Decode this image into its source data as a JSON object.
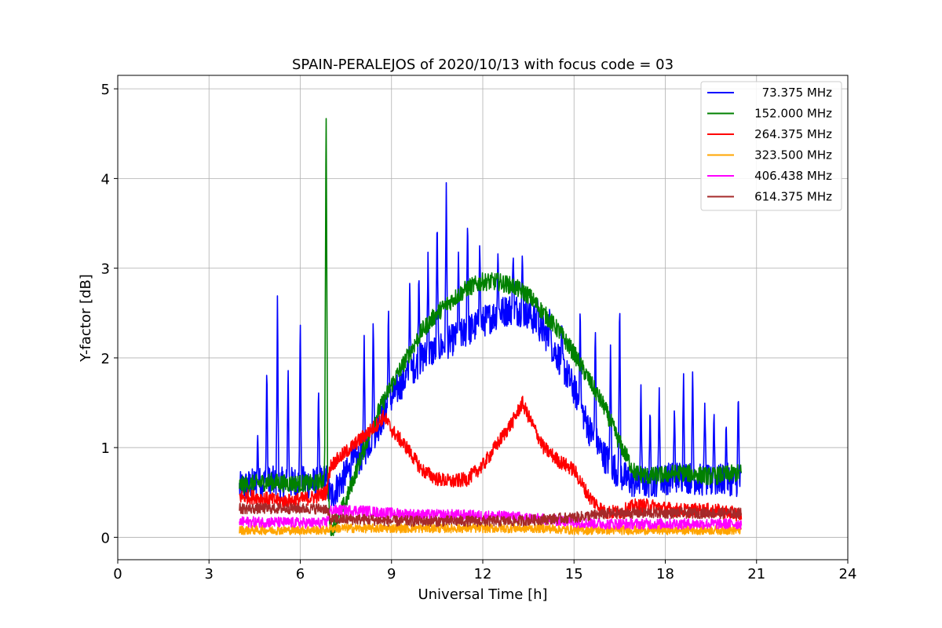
{
  "chart_data": {
    "type": "line",
    "title": "SPAIN-PERALEJOS of 2020/10/13 with focus code = 03",
    "xlabel": "Universal Time [h]",
    "ylabel": "Y-factor [dB]",
    "xlim": [
      0,
      24
    ],
    "ylim": [
      -0.25,
      5.15
    ],
    "xticks": [
      0,
      3,
      6,
      9,
      12,
      15,
      18,
      21,
      24
    ],
    "yticks": [
      0,
      1,
      2,
      3,
      4,
      5
    ],
    "grid": true,
    "legend_position": "top-right",
    "series": [
      {
        "name": "73.375 MHz",
        "color": "#0000ff",
        "x": [
          4.0,
          4.5,
          5.0,
          5.5,
          6.0,
          6.5,
          6.85,
          7.0,
          7.5,
          8.0,
          8.5,
          9.0,
          9.5,
          10.0,
          10.5,
          11.0,
          11.5,
          12.0,
          12.5,
          13.0,
          13.5,
          14.0,
          14.5,
          15.0,
          15.5,
          16.0,
          16.5,
          17.0,
          17.5,
          18.0,
          18.5,
          19.0,
          19.5,
          20.0,
          20.5
        ],
        "values": [
          0.55,
          0.6,
          0.62,
          0.6,
          0.62,
          0.6,
          0.65,
          0.45,
          0.7,
          0.9,
          1.2,
          1.55,
          1.8,
          2.0,
          2.1,
          2.2,
          2.3,
          2.4,
          2.5,
          2.55,
          2.5,
          2.3,
          2.0,
          1.65,
          1.2,
          0.9,
          0.7,
          0.6,
          0.62,
          0.65,
          0.68,
          0.65,
          0.62,
          0.65,
          0.62
        ],
        "peaks": [
          [
            4.6,
            1.15
          ],
          [
            4.9,
            1.95
          ],
          [
            5.25,
            2.73
          ],
          [
            5.6,
            1.95
          ],
          [
            6.0,
            2.52
          ],
          [
            6.6,
            1.72
          ],
          [
            7.7,
            1.05
          ],
          [
            8.1,
            2.3
          ],
          [
            8.4,
            2.5
          ],
          [
            8.9,
            2.6
          ],
          [
            9.6,
            2.88
          ],
          [
            9.9,
            3.0
          ],
          [
            10.2,
            3.2
          ],
          [
            10.5,
            3.6
          ],
          [
            10.8,
            3.97
          ],
          [
            11.2,
            3.2
          ],
          [
            11.5,
            3.6
          ],
          [
            11.9,
            3.35
          ],
          [
            12.5,
            3.2
          ],
          [
            13.0,
            3.2
          ],
          [
            13.3,
            3.15
          ],
          [
            13.8,
            2.7
          ],
          [
            14.2,
            2.58
          ],
          [
            14.6,
            2.4
          ],
          [
            15.2,
            2.6
          ],
          [
            15.7,
            2.4
          ],
          [
            16.2,
            2.2
          ],
          [
            16.5,
            2.75
          ],
          [
            17.2,
            1.7
          ],
          [
            17.5,
            1.45
          ],
          [
            17.8,
            1.7
          ],
          [
            18.3,
            1.48
          ],
          [
            18.6,
            1.9
          ],
          [
            18.9,
            1.93
          ],
          [
            19.3,
            1.55
          ],
          [
            19.6,
            1.45
          ],
          [
            20.0,
            1.3
          ],
          [
            20.4,
            1.65
          ]
        ]
      },
      {
        "name": "152.000 MHz",
        "color": "#008000",
        "x": [
          4.0,
          4.5,
          5.0,
          5.5,
          6.0,
          6.5,
          6.8,
          6.85,
          6.9,
          7.0,
          7.2,
          7.5,
          8.0,
          8.5,
          9.0,
          9.5,
          10.0,
          10.5,
          11.0,
          11.5,
          12.0,
          12.5,
          13.0,
          13.5,
          14.0,
          14.5,
          15.0,
          15.5,
          16.0,
          16.5,
          17.0,
          17.5,
          18.0,
          18.5,
          19.0,
          19.5,
          20.0,
          20.5
        ],
        "values": [
          0.58,
          0.6,
          0.62,
          0.6,
          0.6,
          0.6,
          0.65,
          4.88,
          0.6,
          0.05,
          0.2,
          0.4,
          0.9,
          1.35,
          1.7,
          2.0,
          2.3,
          2.5,
          2.65,
          2.78,
          2.85,
          2.85,
          2.8,
          2.7,
          2.5,
          2.3,
          2.05,
          1.75,
          1.45,
          1.05,
          0.72,
          0.68,
          0.7,
          0.72,
          0.7,
          0.68,
          0.7,
          0.72
        ]
      },
      {
        "name": "264.375 MHz",
        "color": "#ff0000",
        "x": [
          4.0,
          4.5,
          5.0,
          5.5,
          6.0,
          6.5,
          6.85,
          7.0,
          7.5,
          8.0,
          8.5,
          8.75,
          9.0,
          9.5,
          10.0,
          10.5,
          11.0,
          11.5,
          12.0,
          12.5,
          13.0,
          13.3,
          13.5,
          14.0,
          14.5,
          15.0,
          15.5,
          16.0,
          16.5,
          17.0,
          17.5,
          18.0,
          18.5,
          19.0,
          19.5,
          20.0,
          20.5
        ],
        "values": [
          0.45,
          0.45,
          0.42,
          0.4,
          0.42,
          0.45,
          0.5,
          0.8,
          0.95,
          1.1,
          1.25,
          1.35,
          1.2,
          1.0,
          0.75,
          0.65,
          0.62,
          0.65,
          0.8,
          1.05,
          1.3,
          1.5,
          1.35,
          1.0,
          0.85,
          0.75,
          0.45,
          0.28,
          0.28,
          0.35,
          0.35,
          0.32,
          0.3,
          0.3,
          0.3,
          0.28,
          0.25
        ]
      },
      {
        "name": "323.500 MHz",
        "color": "#ffa500",
        "x": [
          4.0,
          5.0,
          6.0,
          6.85,
          7.0,
          8.0,
          9.0,
          10.0,
          11.0,
          12.0,
          13.0,
          14.0,
          15.0,
          16.0,
          17.0,
          18.0,
          19.0,
          20.0,
          20.5
        ],
        "values": [
          0.08,
          0.08,
          0.08,
          0.08,
          0.1,
          0.1,
          0.1,
          0.1,
          0.1,
          0.1,
          0.1,
          0.1,
          0.08,
          0.08,
          0.08,
          0.08,
          0.08,
          0.08,
          0.08
        ]
      },
      {
        "name": "406.438 MHz",
        "color": "#ff00ff",
        "x": [
          4.0,
          5.0,
          6.0,
          6.85,
          7.0,
          8.0,
          8.5,
          9.0,
          10.0,
          11.0,
          12.0,
          13.0,
          14.0,
          15.0,
          16.0,
          17.0,
          18.0,
          19.0,
          20.0,
          20.5
        ],
        "values": [
          0.17,
          0.17,
          0.16,
          0.16,
          0.3,
          0.3,
          0.28,
          0.27,
          0.25,
          0.25,
          0.24,
          0.23,
          0.2,
          0.17,
          0.15,
          0.15,
          0.15,
          0.15,
          0.15,
          0.15
        ]
      },
      {
        "name": "614.375 MHz",
        "color": "#a52a2a",
        "x": [
          4.0,
          5.0,
          6.0,
          6.85,
          7.0,
          8.0,
          9.0,
          10.0,
          11.0,
          12.0,
          13.0,
          14.0,
          15.0,
          16.0,
          17.0,
          18.0,
          19.0,
          20.0,
          20.5
        ],
        "values": [
          0.32,
          0.32,
          0.32,
          0.32,
          0.2,
          0.2,
          0.18,
          0.18,
          0.18,
          0.18,
          0.18,
          0.2,
          0.22,
          0.26,
          0.27,
          0.27,
          0.27,
          0.27,
          0.27
        ]
      }
    ]
  }
}
